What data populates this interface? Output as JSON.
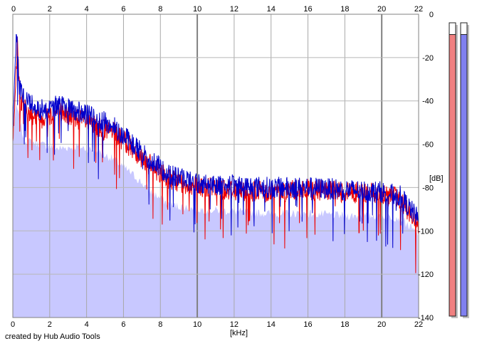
{
  "chart_data": {
    "type": "area",
    "title": "",
    "xlabel": "[kHz]",
    "ylabel": "[dB]",
    "xlim": [
      0,
      22
    ],
    "ylim": [
      -140,
      0
    ],
    "x_ticks": [
      "0",
      "2",
      "4",
      "6",
      "8",
      "10",
      "12",
      "14",
      "16",
      "18",
      "20",
      "22"
    ],
    "y_ticks": [
      "0",
      "-20",
      "-40",
      "-60",
      "-80",
      "-100",
      "-120",
      "-140"
    ],
    "grid": true,
    "legend": "none",
    "series": [
      {
        "color": "#ee0000",
        "points": [
          [
            0,
            -60
          ],
          [
            0.15,
            -35
          ],
          [
            0.25,
            -12
          ],
          [
            0.4,
            -40
          ],
          [
            0.8,
            -45
          ],
          [
            1.5,
            -48
          ],
          [
            2.5,
            -45
          ],
          [
            3.5,
            -48
          ],
          [
            4.5,
            -52
          ],
          [
            5.5,
            -55
          ],
          [
            6.5,
            -62
          ],
          [
            7.5,
            -70
          ],
          [
            8.5,
            -76
          ],
          [
            10,
            -80
          ],
          [
            12,
            -81
          ],
          [
            14,
            -82
          ],
          [
            16,
            -81
          ],
          [
            18,
            -82
          ],
          [
            20,
            -83
          ],
          [
            21,
            -85
          ],
          [
            22,
            -98
          ]
        ]
      },
      {
        "color": "#0000cc",
        "points": [
          [
            0,
            -55
          ],
          [
            0.1,
            -30
          ],
          [
            0.2,
            -8
          ],
          [
            0.35,
            -35
          ],
          [
            0.8,
            -40
          ],
          [
            1.5,
            -44
          ],
          [
            2.5,
            -42
          ],
          [
            3.5,
            -45
          ],
          [
            4.5,
            -48
          ],
          [
            5.5,
            -52
          ],
          [
            6.5,
            -60
          ],
          [
            7.5,
            -68
          ],
          [
            8.5,
            -74
          ],
          [
            10,
            -78
          ],
          [
            12,
            -79
          ],
          [
            14,
            -80
          ],
          [
            16,
            -80
          ],
          [
            18,
            -81
          ],
          [
            20,
            -82
          ],
          [
            21,
            -84
          ],
          [
            22,
            -95
          ]
        ]
      }
    ],
    "filled_area": {
      "color": "#c8c8ff",
      "points": [
        [
          0,
          -58
        ],
        [
          0.2,
          -42
        ],
        [
          0.6,
          -58
        ],
        [
          1.5,
          -60
        ],
        [
          2.5,
          -62
        ],
        [
          3.5,
          -61
        ],
        [
          4.5,
          -63
        ],
        [
          5.5,
          -67
        ],
        [
          6.5,
          -74
        ],
        [
          7.5,
          -82
        ],
        [
          8.5,
          -88
        ],
        [
          10,
          -90
        ],
        [
          12,
          -91
        ],
        [
          14,
          -92
        ],
        [
          16,
          -92
        ],
        [
          18,
          -93
        ],
        [
          20,
          -93
        ],
        [
          21,
          -94
        ],
        [
          22,
          -102
        ]
      ]
    }
  },
  "meters": [
    {
      "color": "#f08080",
      "level": 0.96
    },
    {
      "color": "#8080f0",
      "level": 0.96
    }
  ],
  "credit": "created by Hub Audio Tools"
}
